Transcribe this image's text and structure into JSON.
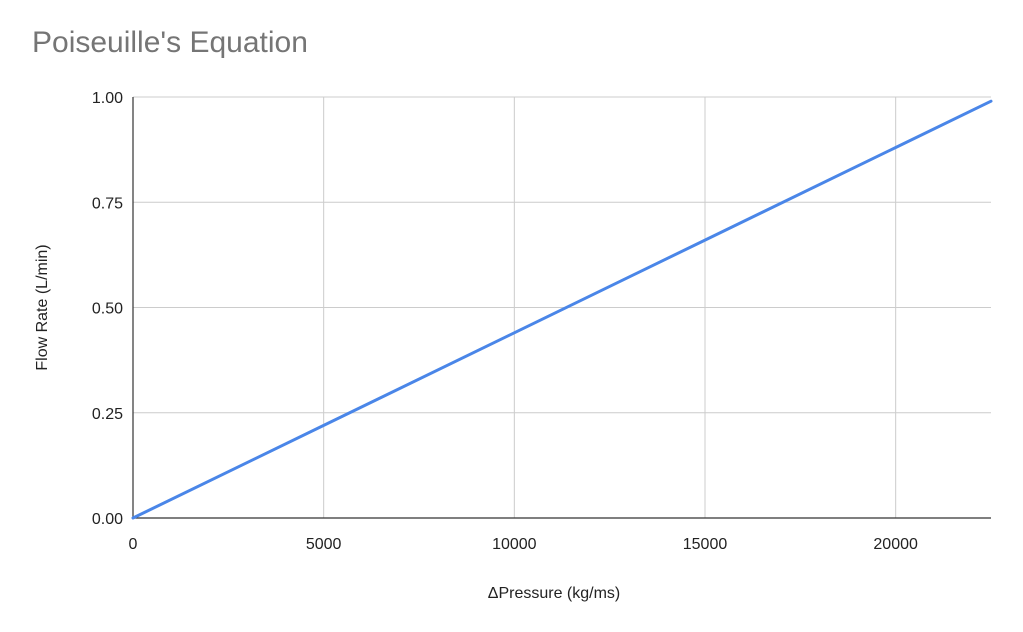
{
  "chart_data": {
    "type": "line",
    "title": "Poiseuille's Equation",
    "xlabel": "ΔPressure (kg/ms)",
    "ylabel": "Flow Rate (L/min)",
    "xlim": [
      0,
      22500
    ],
    "ylim": [
      0,
      1
    ],
    "x_ticks": [
      0,
      5000,
      10000,
      15000,
      20000
    ],
    "x_tick_labels": [
      "0",
      "5000",
      "10000",
      "15000",
      "20000"
    ],
    "y_ticks": [
      0,
      0.25,
      0.5,
      0.75,
      1
    ],
    "y_tick_labels": [
      "0.00",
      "0.25",
      "0.50",
      "0.75",
      "1.00"
    ],
    "grid": true,
    "series": [
      {
        "color": "#4a86e8",
        "x": [
          0,
          5000,
          10000,
          15000,
          20000,
          22500
        ],
        "y": [
          0,
          0.22,
          0.44,
          0.66,
          0.88,
          0.99
        ]
      }
    ]
  }
}
